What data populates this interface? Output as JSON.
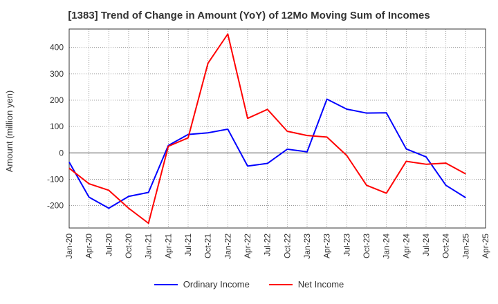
{
  "chart_data": {
    "type": "line",
    "title": "[1383]  Trend of Change in Amount (YoY) of 12Mo Moving Sum of Incomes",
    "ylabel": "Amount (million yen)",
    "xlabel": "",
    "ylim": [
      -285,
      470
    ],
    "yticks": [
      -200,
      -100,
      0,
      100,
      200,
      300,
      400
    ],
    "x_tick_labels": [
      "Jan-20",
      "Apr-20",
      "Jul-20",
      "Oct-20",
      "Jan-21",
      "Apr-21",
      "Jul-21",
      "Oct-21",
      "Jan-22",
      "Apr-22",
      "Jul-22",
      "Oct-22",
      "Jan-23",
      "Apr-23",
      "Jul-23",
      "Oct-23",
      "Jan-24",
      "Apr-24",
      "Jul-24",
      "Oct-24",
      "Jan-25",
      "Apr-25"
    ],
    "grid": true,
    "legend_position": "bottom",
    "series": [
      {
        "name": "Ordinary Income",
        "color": "#0000ff",
        "values": [
          -35,
          -168,
          -210,
          -165,
          -150,
          28,
          70,
          76,
          90,
          -50,
          -40,
          14,
          4,
          204,
          166,
          151,
          152,
          15,
          -15,
          -123,
          -170
        ]
      },
      {
        "name": "Net Income",
        "color": "#ff0000",
        "values": [
          -58,
          -117,
          -142,
          -210,
          -267,
          25,
          57,
          340,
          451,
          131,
          165,
          82,
          66,
          60,
          -10,
          -123,
          -153,
          -32,
          -43,
          -39,
          -80
        ]
      }
    ]
  }
}
